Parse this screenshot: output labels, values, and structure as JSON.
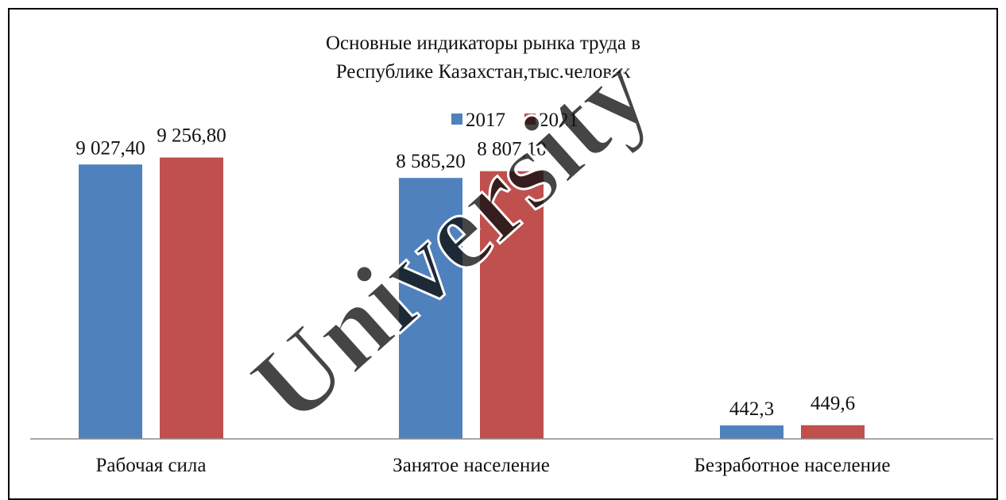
{
  "chart_data": {
    "type": "bar",
    "title_lines": [
      "Основные индикаторы рынка труда в",
      "Республике Казахстан,тыс.человек"
    ],
    "categories": [
      "Рабочая сила",
      "Занятое население",
      "Безработное население"
    ],
    "series": [
      {
        "name": "2017",
        "color": "#4f81bd",
        "values": [
          9027.4,
          8585.2,
          442.3
        ],
        "labels": [
          "9 027,40",
          "8 585,20",
          "442,3"
        ]
      },
      {
        "name": "2021",
        "color": "#c0504d",
        "values": [
          9256.8,
          8807.1,
          449.6
        ],
        "labels": [
          "9 256,80",
          "8 807,10",
          "449,6"
        ]
      }
    ],
    "ylim": [
      0,
      10000
    ],
    "grid": false,
    "legend_position": "top-center"
  },
  "watermark": {
    "text": "University"
  }
}
